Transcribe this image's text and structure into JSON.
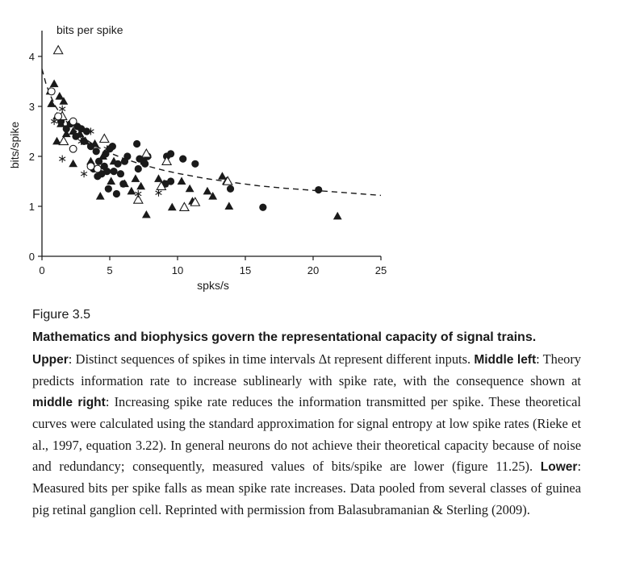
{
  "chart_data": {
    "type": "scatter",
    "title": "bits per spike",
    "xlabel": "spks/s",
    "ylabel": "bits/spike",
    "xlim": [
      0,
      25
    ],
    "ylim": [
      0,
      4
    ],
    "xticks": [
      0,
      5,
      10,
      15,
      20,
      25
    ],
    "yticks": [
      0,
      1,
      2,
      3,
      4
    ],
    "xtick_labels": [
      "0",
      "5",
      "10",
      "15",
      "20",
      "25"
    ],
    "ytick_labels": [
      "0",
      "1",
      "2",
      "3",
      "4"
    ],
    "series": [
      {
        "marker": "filled-circle",
        "points": [
          [
            1.4,
            2.7
          ],
          [
            1.8,
            2.55
          ],
          [
            2.1,
            2.65
          ],
          [
            2.6,
            2.6
          ],
          [
            2.9,
            2.55
          ],
          [
            3.3,
            2.5
          ],
          [
            2.5,
            2.4
          ],
          [
            3.1,
            2.3
          ],
          [
            3.6,
            2.2
          ],
          [
            4.0,
            2.1
          ],
          [
            4.7,
            2.05
          ],
          [
            5.0,
            2.15
          ],
          [
            5.2,
            2.2
          ],
          [
            4.2,
            1.9
          ],
          [
            4.6,
            1.8
          ],
          [
            3.8,
            1.75
          ],
          [
            4.4,
            1.65
          ],
          [
            5.3,
            1.7
          ],
          [
            5.8,
            1.65
          ],
          [
            6.1,
            1.9
          ],
          [
            6.3,
            2.0
          ],
          [
            5.6,
            1.85
          ],
          [
            4.8,
            1.7
          ],
          [
            4.1,
            1.6
          ],
          [
            4.9,
            1.35
          ],
          [
            5.5,
            1.25
          ],
          [
            6.0,
            1.45
          ],
          [
            7.0,
            2.25
          ],
          [
            7.2,
            1.95
          ],
          [
            7.5,
            1.9
          ],
          [
            7.8,
            2.0
          ],
          [
            7.1,
            1.75
          ],
          [
            7.6,
            1.85
          ],
          [
            9.2,
            2.0
          ],
          [
            9.5,
            2.05
          ],
          [
            10.4,
            1.95
          ],
          [
            11.3,
            1.85
          ],
          [
            9.1,
            1.45
          ],
          [
            9.5,
            1.5
          ],
          [
            13.9,
            1.35
          ],
          [
            20.4,
            1.33
          ],
          [
            16.3,
            0.98
          ]
        ]
      },
      {
        "marker": "filled-triangle",
        "points": [
          [
            0.6,
            3.3
          ],
          [
            0.9,
            3.45
          ],
          [
            1.3,
            3.2
          ],
          [
            1.6,
            3.1
          ],
          [
            0.7,
            3.05
          ],
          [
            1.1,
            2.8
          ],
          [
            1.4,
            2.65
          ],
          [
            2.3,
            2.5
          ],
          [
            3.2,
            2.3
          ],
          [
            3.9,
            2.25
          ],
          [
            4.5,
            2.0
          ],
          [
            5.3,
            1.9
          ],
          [
            6.1,
            1.45
          ],
          [
            6.6,
            1.3
          ],
          [
            5.1,
            1.5
          ],
          [
            4.3,
            1.2
          ],
          [
            6.9,
            1.55
          ],
          [
            7.3,
            1.4
          ],
          [
            7.7,
            0.83
          ],
          [
            8.6,
            1.55
          ],
          [
            9.0,
            1.45
          ],
          [
            9.6,
            0.98
          ],
          [
            10.3,
            1.5
          ],
          [
            10.9,
            1.35
          ],
          [
            11.1,
            1.1
          ],
          [
            12.2,
            1.3
          ],
          [
            12.6,
            1.2
          ],
          [
            13.3,
            1.6
          ],
          [
            13.6,
            1.5
          ],
          [
            13.8,
            1.0
          ],
          [
            2.3,
            1.85
          ],
          [
            3.6,
            1.9
          ],
          [
            21.8,
            0.8
          ],
          [
            1.1,
            2.3
          ],
          [
            1.8,
            2.45
          ],
          [
            2.8,
            2.45
          ]
        ]
      },
      {
        "marker": "open-triangle",
        "points": [
          [
            1.2,
            4.12
          ],
          [
            1.5,
            2.8
          ],
          [
            1.6,
            2.3
          ],
          [
            4.6,
            2.35
          ],
          [
            7.7,
            2.05
          ],
          [
            9.2,
            1.9
          ],
          [
            7.1,
            1.13
          ],
          [
            8.8,
            1.4
          ],
          [
            10.5,
            0.98
          ],
          [
            11.3,
            1.08
          ],
          [
            13.7,
            1.5
          ]
        ]
      },
      {
        "marker": "open-circle",
        "points": [
          [
            0.7,
            3.3
          ],
          [
            2.3,
            2.7
          ],
          [
            2.3,
            2.15
          ],
          [
            3.6,
            1.8
          ],
          [
            4.1,
            1.75
          ],
          [
            1.2,
            2.8
          ]
        ]
      },
      {
        "marker": "asterisk",
        "points": [
          [
            1.5,
            2.95
          ],
          [
            0.9,
            2.7
          ],
          [
            1.5,
            1.95
          ],
          [
            3.1,
            1.65
          ],
          [
            2.9,
            2.3
          ],
          [
            3.6,
            2.5
          ],
          [
            4.8,
            2.15
          ],
          [
            7.1,
            1.25
          ],
          [
            8.6,
            1.27
          ],
          [
            3.0,
            2.35
          ]
        ]
      }
    ],
    "fit_curve": {
      "style": "dashed",
      "points": [
        [
          0.0,
          3.75
        ],
        [
          0.3,
          3.45
        ],
        [
          0.6,
          3.23
        ],
        [
          1.0,
          3.0
        ],
        [
          1.5,
          2.8
        ],
        [
          2.0,
          2.63
        ],
        [
          3.0,
          2.38
        ],
        [
          4.0,
          2.2
        ],
        [
          5.0,
          2.07
        ],
        [
          6.0,
          1.96
        ],
        [
          7.0,
          1.87
        ],
        [
          8.0,
          1.79
        ],
        [
          9.0,
          1.72
        ],
        [
          10.0,
          1.66
        ],
        [
          12.0,
          1.56
        ],
        [
          14.0,
          1.48
        ],
        [
          16.0,
          1.41
        ],
        [
          18.0,
          1.36
        ],
        [
          20.0,
          1.32
        ],
        [
          22.0,
          1.28
        ],
        [
          25.0,
          1.22
        ]
      ]
    }
  },
  "caption": {
    "figure_label": "Figure 3.5",
    "title": "Mathematics and biophysics govern the representational capacity of signal trains.",
    "upper_label": "Upper",
    "upper_text": ": Distinct sequences of spikes in time intervals Δt represent different inputs.",
    "middle_left_label": "Middle left",
    "middle_left_text": ": Theory predicts information rate to increase sublinearly with spike rate, with the consequence shown at ",
    "middle_right_label": "middle right",
    "middle_right_text": ": Increasing spike rate reduces the information transmitted per spike. These theoretical curves were calculated using the standard approximation for signal entropy at low spike rates (Rieke et al., 1997, equation 3.22). In general neurons do not achieve their theoretical capacity because of noise and redundancy; consequently, measured values of bits/spike are lower (figure 11.25). ",
    "lower_label": "Lower",
    "lower_text": ": Measured bits per spike falls as mean spike rate increases. Data pooled from several classes of guinea pig retinal ganglion cell. Reprinted with permission from Balasubramanian & Sterling (2009)."
  }
}
